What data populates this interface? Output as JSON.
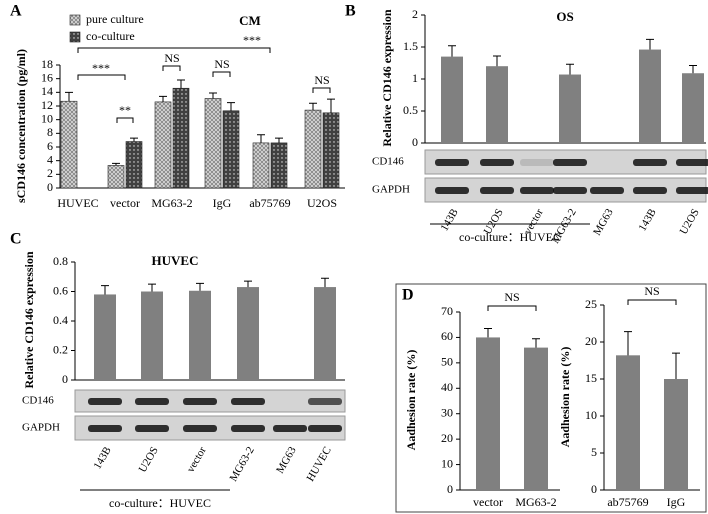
{
  "chart_data": [
    {
      "type": "bar",
      "panel": "A",
      "title": "CM",
      "y_label": "sCD146 concentration (pg/ml)",
      "categories": [
        "HUVEC",
        "vector",
        "MG63-2",
        "IgG",
        "ab75769",
        "U2OS"
      ],
      "series": [
        {
          "name": "pure culture",
          "color": "#d9d9d9",
          "values": [
            12.7,
            3.3,
            12.6,
            13.1,
            6.6,
            11.4
          ],
          "errors": [
            1.3,
            0.3,
            0.8,
            0.8,
            1.2,
            1.0
          ]
        },
        {
          "name": "co-culture",
          "color": "#404040",
          "values": [
            null,
            6.8,
            14.6,
            11.3,
            6.6,
            11.0
          ],
          "errors": [
            null,
            0.5,
            1.2,
            1.2,
            0.7,
            2.0
          ]
        }
      ],
      "ylim": [
        0,
        18
      ],
      "yticks": [
        0,
        2,
        4,
        6,
        8,
        10,
        12,
        14,
        16,
        18
      ],
      "annotations": [
        "***",
        "**",
        "NS",
        "***",
        "NS",
        "NS"
      ]
    },
    {
      "type": "bar",
      "panel": "B",
      "title": "OS",
      "y_label": "Relative CD146 expression",
      "categories": [
        "143B",
        "U2OS",
        "vector",
        "MG63-2",
        "MG63",
        "143B",
        "U2OS"
      ],
      "color": "#808080",
      "values": [
        1.35,
        1.2,
        null,
        1.07,
        null,
        1.46,
        1.09
      ],
      "errors": [
        0.17,
        0.16,
        null,
        0.16,
        null,
        0.16,
        0.12
      ],
      "ylim": [
        0,
        2
      ],
      "yticks": [
        0,
        0.5,
        1,
        1.5,
        2
      ],
      "blot_labels": [
        "CD146",
        "GAPDH"
      ],
      "group_label": "co-culture：HUVEC"
    },
    {
      "type": "bar",
      "panel": "C",
      "title": "HUVEC",
      "y_label": "Relative CD146 expression",
      "categories": [
        "143B",
        "U2OS",
        "vector",
        "MG63-2",
        "MG63",
        "HUVEC"
      ],
      "color": "#808080",
      "values": [
        0.58,
        0.6,
        0.605,
        0.63,
        null,
        0.63
      ],
      "errors": [
        0.06,
        0.05,
        0.05,
        0.04,
        null,
        0.06
      ],
      "ylim": [
        0,
        0.8
      ],
      "yticks": [
        0,
        0.2,
        0.4,
        0.6,
        0.8
      ],
      "blot_labels": [
        "CD146",
        "GAPDH"
      ],
      "group_label": "co-culture：HUVEC"
    },
    {
      "type": "bar",
      "panel": "D",
      "y_label": "Aadhesion rate (%)",
      "categories": [
        "vector",
        "MG63-2"
      ],
      "color": "#808080",
      "values": [
        60,
        56
      ],
      "errors": [
        3.5,
        3.5
      ],
      "ylim": [
        0,
        70
      ],
      "yticks": [
        0,
        10,
        20,
        30,
        40,
        50,
        60,
        70
      ],
      "annotations": [
        "NS"
      ]
    },
    {
      "type": "bar",
      "y_label": "Aadhesion rate (%)",
      "categories": [
        "ab75769",
        "IgG"
      ],
      "color": "#808080",
      "values": [
        18.2,
        15
      ],
      "errors": [
        3.2,
        3.5
      ],
      "ylim": [
        0,
        25
      ],
      "yticks": [
        0,
        5,
        10,
        15,
        20,
        25
      ],
      "annotations": [
        "NS"
      ]
    }
  ]
}
